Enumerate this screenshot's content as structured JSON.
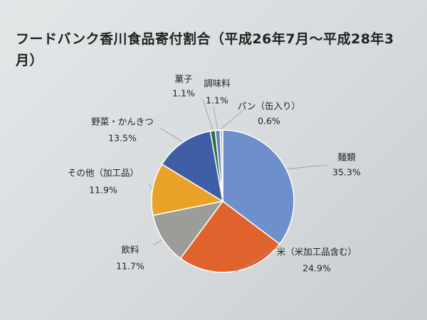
{
  "chart_data": {
    "type": "pie",
    "title": "フードバンク香川食品寄付割合（平成26年7月～平成28年3月）",
    "categories": [
      "麺類",
      "米（米加工品含む）",
      "飲料",
      "その他（加工品）",
      "野菜・かんきつ",
      "菓子",
      "調味料",
      "パン（缶入り）"
    ],
    "values": [
      35.3,
      24.9,
      11.7,
      11.9,
      13.5,
      1.1,
      1.1,
      0.6
    ],
    "value_labels": [
      "35.3%",
      "24.9%",
      "11.7%",
      "11.9%",
      "13.5%",
      "1.1%",
      "1.1%",
      "0.6%"
    ],
    "colors": [
      "#6d8fcb",
      "#e0622c",
      "#9c9c98",
      "#e9a128",
      "#3f5ea6",
      "#2f6e3e",
      "#5f86c2",
      "#b8bcc0"
    ]
  }
}
